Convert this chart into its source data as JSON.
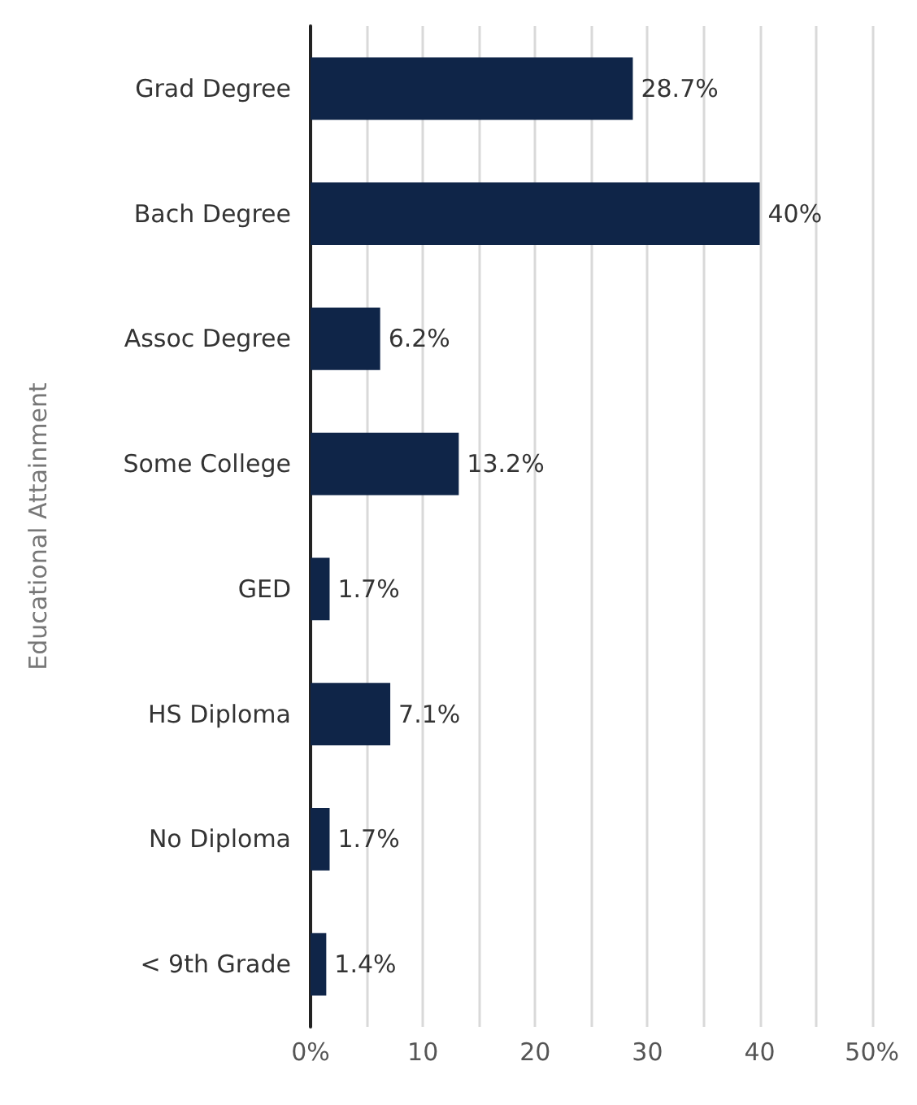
{
  "chart_data": {
    "type": "bar",
    "orientation": "horizontal",
    "ylabel": "Educational Attainment",
    "categories": [
      "Grad Degree",
      "Bach Degree",
      "Assoc Degree",
      "Some College",
      "GED",
      "HS Diploma",
      "No Diploma",
      "< 9th Grade"
    ],
    "values": [
      28.7,
      40,
      6.2,
      13.2,
      1.7,
      7.1,
      1.7,
      1.4
    ],
    "value_labels": [
      "28.7%",
      "40%",
      "6.2%",
      "13.2%",
      "1.7%",
      "7.1%",
      "1.7%",
      "1.4%"
    ],
    "color": "#0f2548",
    "xlim": [
      0,
      50
    ],
    "xticks": [
      {
        "value": 0,
        "label": "0%"
      },
      {
        "value": 5,
        "label": null
      },
      10,
      {
        "value": 15,
        "label": null
      },
      20,
      {
        "value": 25,
        "label": null
      },
      30,
      {
        "value": 35,
        "label": null
      },
      40,
      {
        "value": 45,
        "label": null
      },
      {
        "value": 50,
        "label": "50%"
      }
    ],
    "grid": "x"
  }
}
